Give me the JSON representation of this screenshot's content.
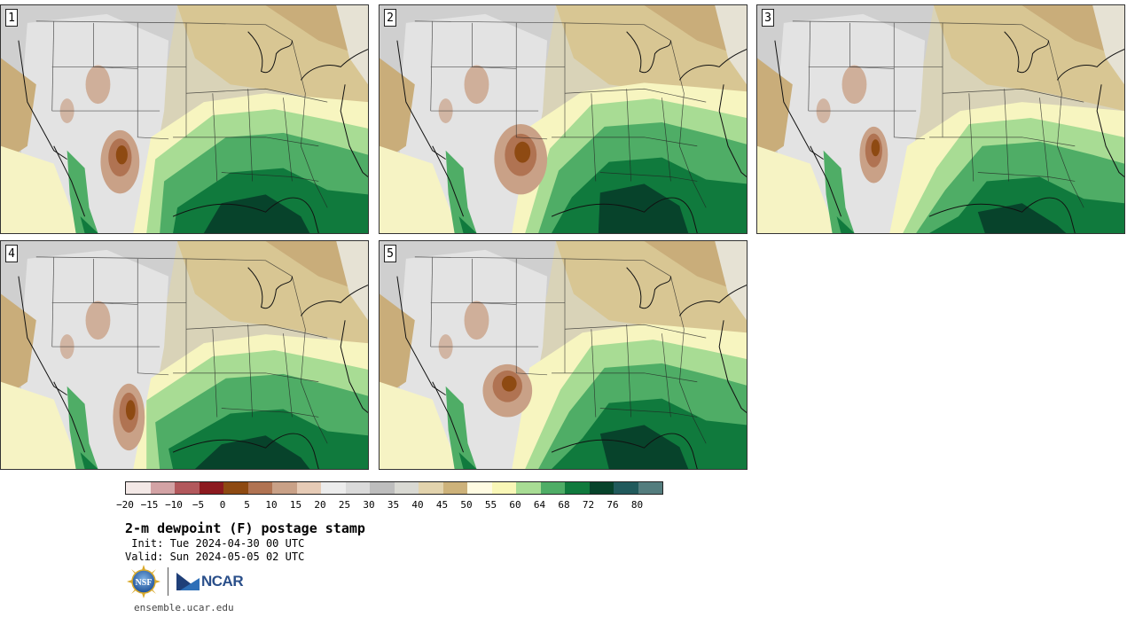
{
  "panels": [
    {
      "label": "1"
    },
    {
      "label": "2"
    },
    {
      "label": "3"
    },
    {
      "label": "4"
    },
    {
      "label": "5"
    }
  ],
  "colorbar": {
    "colors": [
      "#f3e8e6",
      "#d3a3a5",
      "#b2585c",
      "#8c1a1f",
      "#8e4a12",
      "#b07352",
      "#c9a187",
      "#e6cbb6",
      "#ececec",
      "#dadada",
      "#bdbdbd",
      "#d9d9d3",
      "#e2d3ad",
      "#cdb27a",
      "#fffbe2",
      "#f9f7b7",
      "#a8dc94",
      "#4fad66",
      "#107a3d",
      "#07432b",
      "#215a5c",
      "#547d7e"
    ],
    "ticks": [
      "−20",
      "−15",
      "−10",
      "−5",
      "0",
      "5",
      "10",
      "15",
      "20",
      "25",
      "30",
      "35",
      "40",
      "45",
      "50",
      "55",
      "60",
      "64",
      "68",
      "72",
      "76",
      "80"
    ]
  },
  "title": "2-m dewpoint (F) postage stamp",
  "init": " Init: Tue 2024-04-30 00 UTC",
  "valid": "Valid: Sun 2024-05-05 02 UTC",
  "logos": {
    "nsf": "NSF",
    "ncar": "NCAR"
  },
  "website": "ensemble.ucar.edu"
}
